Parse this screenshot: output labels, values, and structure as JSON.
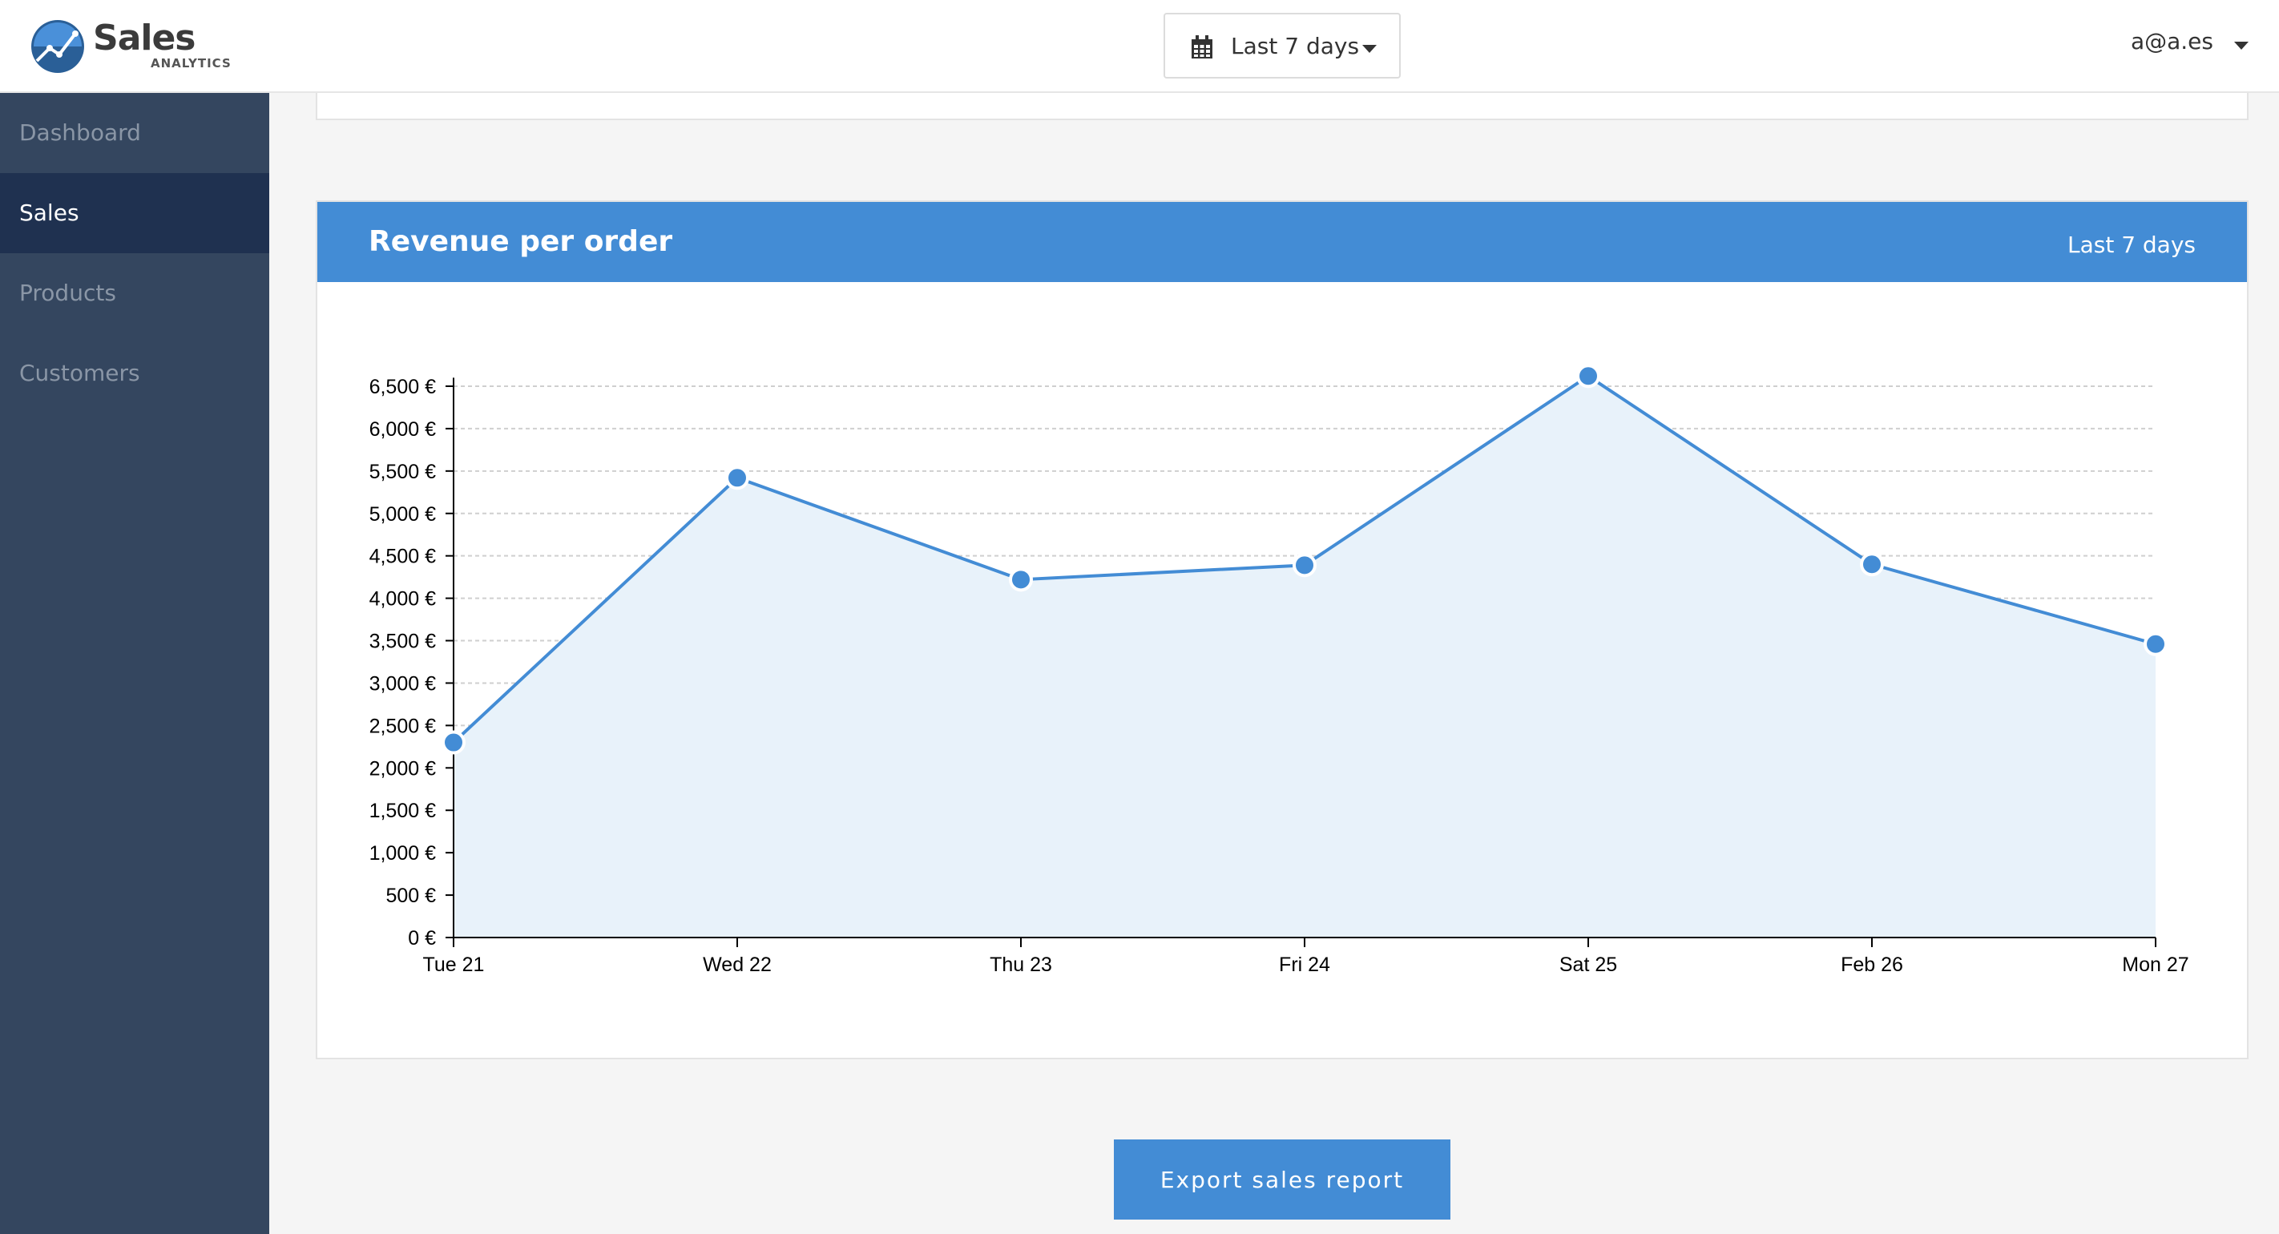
{
  "app": {
    "brand_name": "Sales",
    "brand_sub": "ANALYTICS",
    "colors": {
      "accent": "#438cd5",
      "sidebar": "#34465f",
      "sidebar_active": "#1f3150",
      "area_fill": "#e8f2fa"
    }
  },
  "header": {
    "date_range_label": "Last 7 days",
    "date_range_icon": "calendar-icon",
    "user_email": "a@a.es"
  },
  "sidebar": {
    "items": [
      {
        "label": "Dashboard",
        "active": false
      },
      {
        "label": "Sales",
        "active": true
      },
      {
        "label": "Products",
        "active": false
      },
      {
        "label": "Customers",
        "active": false
      }
    ]
  },
  "panel": {
    "title": "Revenue per order",
    "range_label": "Last 7 days"
  },
  "chart_data": {
    "type": "area",
    "title": "Revenue per order",
    "categories": [
      "Tue 21",
      "Wed 22",
      "Thu 23",
      "Fri 24",
      "Sat 25",
      "Feb 26",
      "Mon 27"
    ],
    "values": [
      2300,
      5420,
      4220,
      4390,
      6620,
      4400,
      3460
    ],
    "yticks": [
      0,
      500,
      1000,
      1500,
      2000,
      2500,
      3000,
      3500,
      4000,
      4500,
      5000,
      5500,
      6000,
      6500
    ],
    "ytick_labels": [
      "0 €",
      "500 €",
      "1,000 €",
      "1,500 €",
      "2,000 €",
      "2,500 €",
      "3,000 €",
      "3,500 €",
      "4,000 €",
      "4,500 €",
      "5,000 €",
      "5,500 €",
      "6,000 €",
      "6,500 €"
    ],
    "ylim": [
      0,
      6600
    ],
    "grid": true,
    "xlabel": "",
    "ylabel": ""
  },
  "actions": {
    "export_label": "Export sales report"
  }
}
